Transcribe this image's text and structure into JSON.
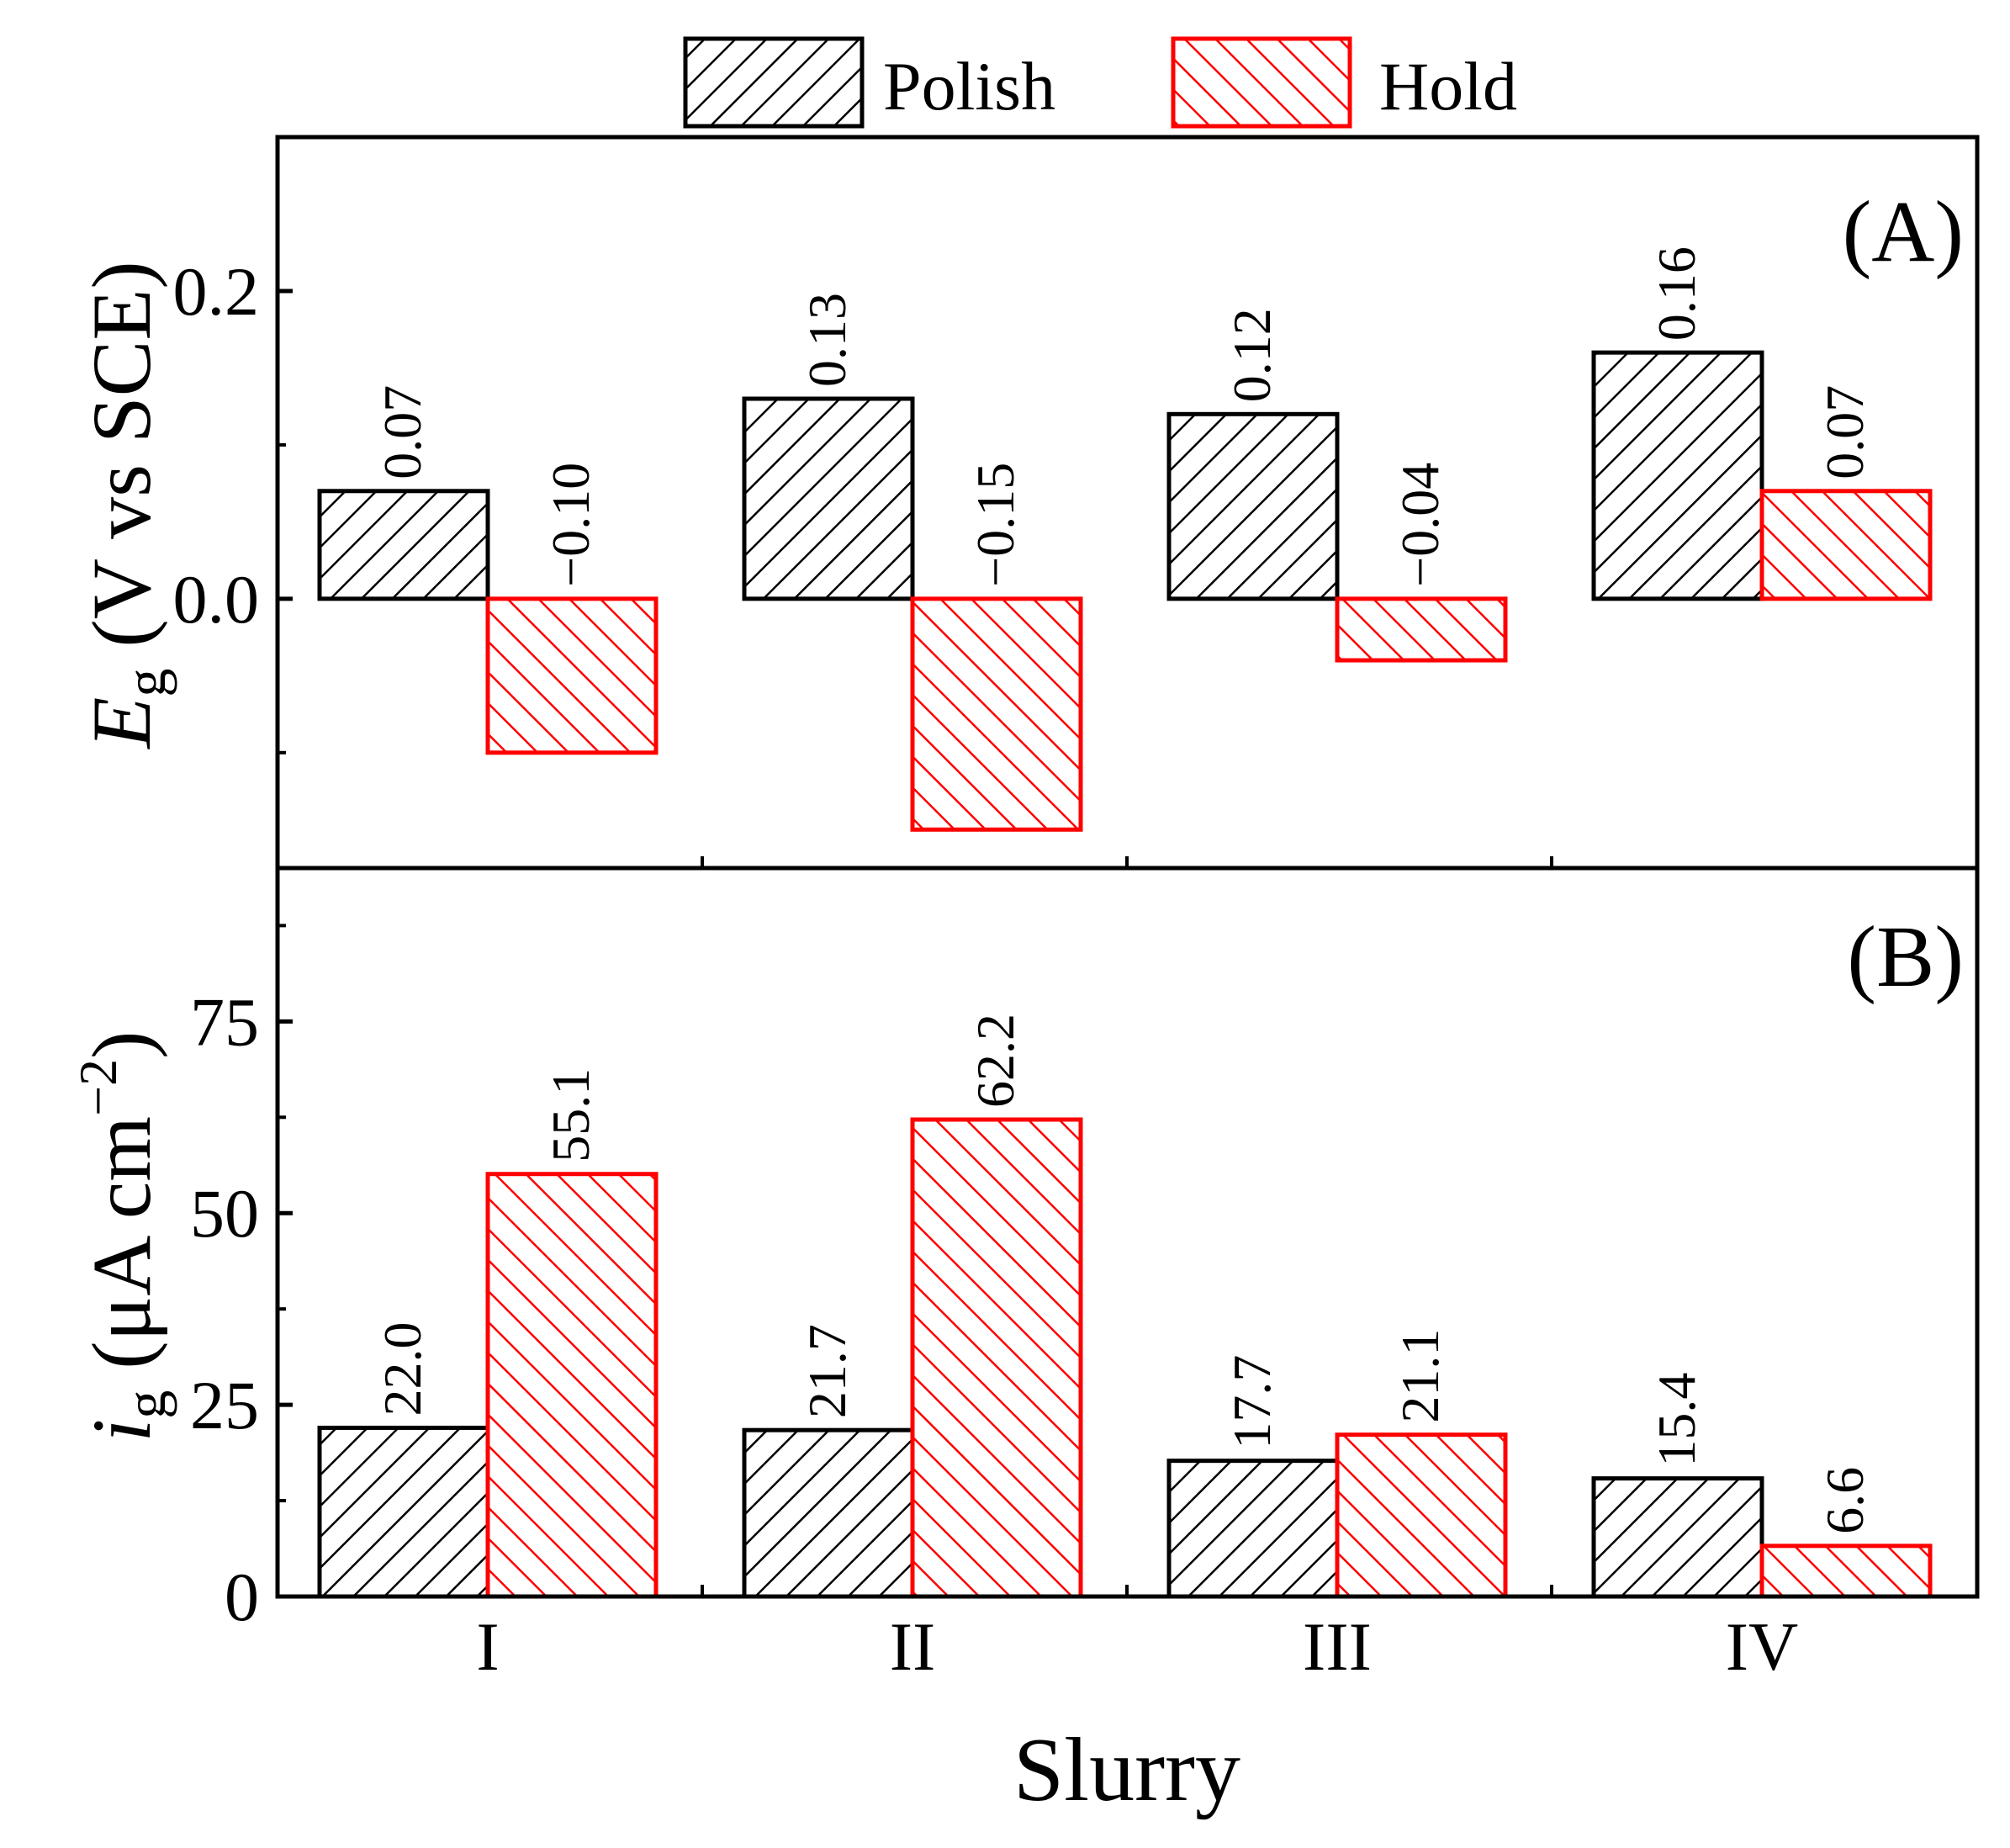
{
  "legend": {
    "polish": "Polish",
    "hold": "Hold"
  },
  "colors": {
    "polish": "#000000",
    "hold": "#ff0000",
    "axis": "#000000",
    "background": "#ffffff"
  },
  "chart_data": [
    {
      "type": "bar",
      "panel": "(A)",
      "categories": [
        "I",
        "II",
        "III",
        "IV"
      ],
      "series": [
        {
          "name": "Polish",
          "values": [
            0.07,
            0.13,
            0.12,
            0.16
          ],
          "labels": [
            "0.07",
            "0.13",
            "0.12",
            "0.16"
          ]
        },
        {
          "name": "Hold",
          "values": [
            -0.1,
            -0.15,
            -0.04,
            0.07
          ],
          "labels": [
            "−0.10",
            "−0.15",
            "−0.04",
            "0.07"
          ]
        }
      ],
      "ylabel_main": "E",
      "ylabel_sub": "g",
      "ylabel_rest": " (V vs SCE)",
      "ylim": [
        -0.175,
        0.3
      ],
      "yticks": [
        0.0,
        0.2
      ],
      "ytick_labels": [
        "0.0",
        "0.2"
      ]
    },
    {
      "type": "bar",
      "panel": "(B)",
      "categories": [
        "I",
        "II",
        "III",
        "IV"
      ],
      "series": [
        {
          "name": "Polish",
          "values": [
            22.0,
            21.7,
            17.7,
            15.4
          ],
          "labels": [
            "22.0",
            "21.7",
            "17.7",
            "15.4"
          ]
        },
        {
          "name": "Hold",
          "values": [
            55.1,
            62.2,
            21.1,
            6.6
          ],
          "labels": [
            "55.1",
            "62.2",
            "21.1",
            "6.6"
          ]
        }
      ],
      "ylabel_main": "i",
      "ylabel_sub": "g",
      "ylabel_rest": " (μA cm",
      "ylabel_sup": "−2",
      "ylabel_close": ")",
      "ylim": [
        0,
        95
      ],
      "yticks": [
        0,
        25,
        50,
        75
      ],
      "ytick_labels": [
        "0",
        "25",
        "50",
        "75"
      ]
    }
  ],
  "xlabel": "Slurry"
}
